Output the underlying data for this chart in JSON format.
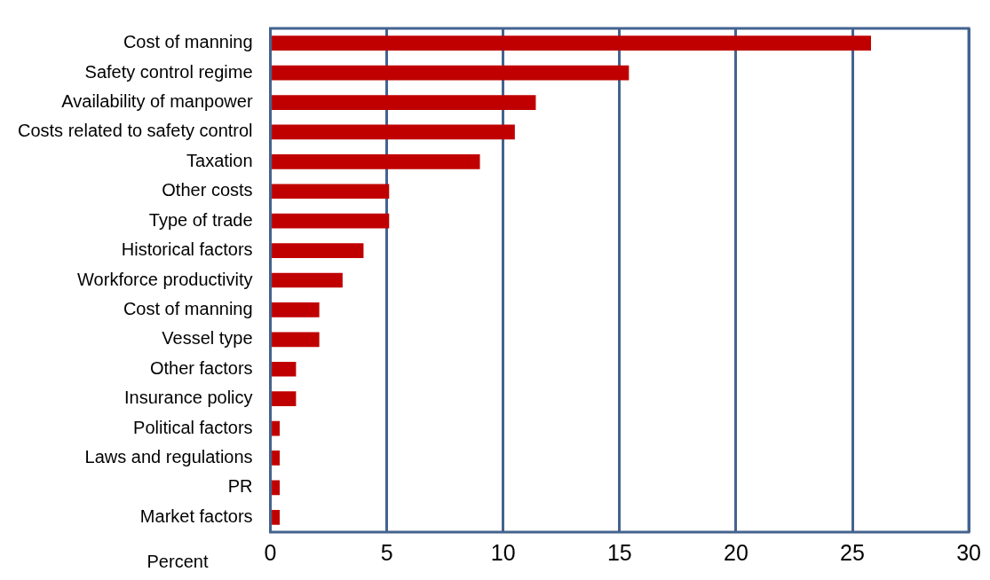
{
  "chart_data": {
    "type": "bar",
    "orientation": "horizontal",
    "xlabel": "Percent",
    "categories": [
      "Cost of manning",
      "Safety control regime",
      "Availability of manpower",
      "Costs related to safety control",
      "Taxation",
      "Other costs",
      "Type of trade",
      "Historical factors",
      "Workforce productivity",
      "Cost of manning",
      "Vessel type",
      "Other factors",
      "Insurance policy",
      "Political factors",
      "Laws and regulations",
      "PR",
      "Market factors"
    ],
    "values": [
      25.8,
      15.4,
      11.4,
      10.5,
      9,
      5.1,
      5.1,
      4,
      3.1,
      2.1,
      2.1,
      1.1,
      1.1,
      0.4,
      0.4,
      0.4,
      0.4
    ],
    "color": "#c00000",
    "xlim": [
      0,
      30
    ],
    "xticks": [
      0,
      5,
      10,
      15,
      20,
      25,
      30
    ],
    "grid": "x",
    "legend": false
  }
}
